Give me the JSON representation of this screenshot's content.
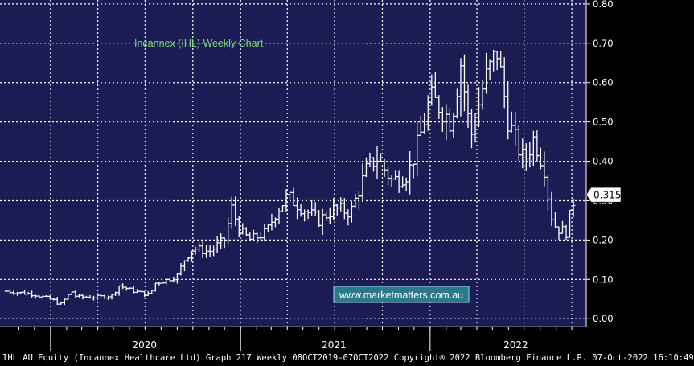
{
  "chart_data": {
    "type": "ohlc",
    "title": "Incannex (IHL) Weekly Chart",
    "watermark": "www.marketmatters.com.au",
    "last_price_label": "0.315",
    "last_price": 0.315,
    "ylim": [
      -0.02,
      0.81
    ],
    "yticks": [
      0.0,
      0.1,
      0.2,
      0.3,
      0.4,
      0.5,
      0.6,
      0.7,
      0.8
    ],
    "ytick_labels": [
      "0.00",
      "0.10",
      "0.20",
      "0.30",
      "0.40",
      "0.50",
      "0.60",
      "0.70",
      "0.80"
    ],
    "x_start": "2019-10-08",
    "x_end": "2022-10-07",
    "year_labels": [
      {
        "label": "2020",
        "date": "2020-06-30"
      },
      {
        "label": "2021",
        "date": "2021-06-30"
      },
      {
        "label": "2022",
        "date": "2022-06-15"
      }
    ],
    "year_boundaries": [
      "2020-01-01",
      "2021-01-01",
      "2022-01-01"
    ],
    "anchors": [
      [
        "2019-10-08",
        0.07
      ],
      [
        "2019-12-01",
        0.062
      ],
      [
        "2020-01-10",
        0.045
      ],
      [
        "2020-01-20",
        0.035
      ],
      [
        "2020-02-10",
        0.07
      ],
      [
        "2020-02-20",
        0.055
      ],
      [
        "2020-04-01",
        0.055
      ],
      [
        "2020-05-01",
        0.06
      ],
      [
        "2020-05-10",
        0.085
      ],
      [
        "2020-06-10",
        0.07
      ],
      [
        "2020-07-10",
        0.06
      ],
      [
        "2020-07-20",
        0.09
      ],
      [
        "2020-08-15",
        0.1
      ],
      [
        "2020-09-01",
        0.11
      ],
      [
        "2020-09-15",
        0.15
      ],
      [
        "2020-10-01",
        0.18
      ],
      [
        "2020-11-01",
        0.17
      ],
      [
        "2020-12-01",
        0.2
      ],
      [
        "2020-12-15",
        0.28
      ],
      [
        "2021-01-01",
        0.22
      ],
      [
        "2021-01-20",
        0.2
      ],
      [
        "2021-02-20",
        0.22
      ],
      [
        "2021-03-10",
        0.27
      ],
      [
        "2021-04-01",
        0.31
      ],
      [
        "2021-05-01",
        0.28
      ],
      [
        "2021-06-01",
        0.25
      ],
      [
        "2021-07-01",
        0.28
      ],
      [
        "2021-08-01",
        0.27
      ],
      [
        "2021-09-01",
        0.38
      ],
      [
        "2021-09-20",
        0.41
      ],
      [
        "2021-10-20",
        0.35
      ],
      [
        "2021-11-20",
        0.37
      ],
      [
        "2021-12-10",
        0.45
      ],
      [
        "2022-01-01",
        0.56
      ],
      [
        "2022-01-20",
        0.54
      ],
      [
        "2022-02-10",
        0.5
      ],
      [
        "2022-03-01",
        0.65
      ],
      [
        "2022-03-20",
        0.46
      ],
      [
        "2022-04-15",
        0.6
      ],
      [
        "2022-05-10",
        0.68
      ],
      [
        "2022-06-01",
        0.5
      ],
      [
        "2022-06-15",
        0.45
      ],
      [
        "2022-07-01",
        0.4
      ],
      [
        "2022-07-20",
        0.46
      ],
      [
        "2022-08-10",
        0.38
      ],
      [
        "2022-08-20",
        0.27
      ],
      [
        "2022-09-01",
        0.23
      ],
      [
        "2022-09-20",
        0.22
      ],
      [
        "2022-10-07",
        0.315
      ]
    ]
  },
  "footer": {
    "text": "IHL AU Equity (Incannex Healthcare Ltd) Graph 217  Weekly 08OCT2019-07OCT2022  Copyright® 2022 Bloomberg Finance L.P.  07-Oct-2022 16:10:49"
  },
  "colors": {
    "plot_bg": "#1c1c55",
    "grid": "#ffffff",
    "bars": "#ffffff",
    "title": "#7cd97c",
    "watermark_bg": "#2a7a8a",
    "watermark_text": "#ffffff",
    "axis_text": "#ffffff",
    "frame_bg": "#000000"
  }
}
